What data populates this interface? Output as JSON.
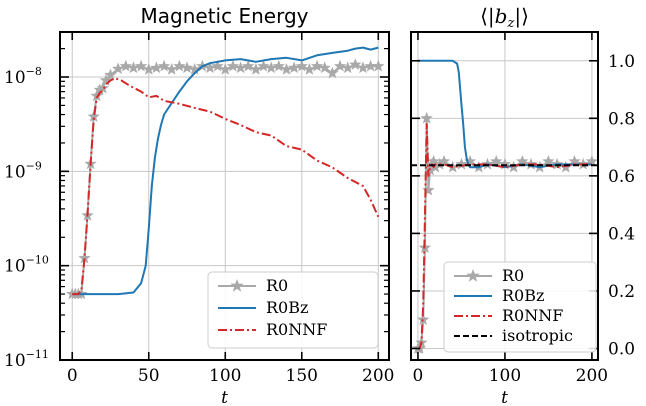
{
  "chart_data": [
    {
      "type": "line",
      "title": "Magnetic Energy",
      "xlabel": "t",
      "ylabel": "",
      "yscale": "log",
      "xlim": [
        -8,
        207
      ],
      "ylim": [
        1e-11,
        3e-08
      ],
      "xticks": [
        0,
        50,
        100,
        150,
        200
      ],
      "xtick_labels": [
        "0",
        "50",
        "100",
        "150",
        "200"
      ],
      "yticks": [
        1e-11,
        1e-10,
        1e-09,
        1e-08
      ],
      "ytick_labels": [
        {
          "base": "10",
          "exp": "−11"
        },
        {
          "base": "10",
          "exp": "−10"
        },
        {
          "base": "10",
          "exp": "−9"
        },
        {
          "base": "10",
          "exp": "−8"
        }
      ],
      "grid": true,
      "legend": "bottom-right",
      "series": [
        {
          "name": "R0",
          "color": "#a9a9a9",
          "marker": "star",
          "x": [
            0,
            2,
            4,
            6,
            8,
            10,
            12,
            14,
            16,
            18,
            20,
            22,
            25,
            30,
            35,
            40,
            45,
            50,
            55,
            60,
            65,
            70,
            75,
            80,
            85,
            90,
            95,
            100,
            105,
            110,
            115,
            120,
            125,
            130,
            135,
            140,
            145,
            150,
            155,
            160,
            165,
            170,
            175,
            180,
            185,
            190,
            195,
            200
          ],
          "y": [
            5e-11,
            5e-11,
            5e-11,
            5e-11,
            1.2e-10,
            3.4e-10,
            1.2e-09,
            3.8e-09,
            6.3e-09,
            7.3e-09,
            7.6e-09,
            9.2e-09,
            1.05e-08,
            1.22e-08,
            1.3e-08,
            1.25e-08,
            1.3e-08,
            1.2e-08,
            1.25e-08,
            1.3e-08,
            1.2e-08,
            1.3e-08,
            1.25e-08,
            1.2e-08,
            1.3e-08,
            1.25e-08,
            1.3e-08,
            1.2e-08,
            1.3e-08,
            1.25e-08,
            1.3e-08,
            1.2e-08,
            1.3e-08,
            1.25e-08,
            1.3e-08,
            1.2e-08,
            1.25e-08,
            1.3e-08,
            1.2e-08,
            1.3e-08,
            1.25e-08,
            1.1e-08,
            1.3e-08,
            1.25e-08,
            1.35e-08,
            1.25e-08,
            1.3e-08,
            1.3e-08
          ]
        },
        {
          "name": "R0Bz",
          "color": "#1f77b4",
          "marker": "none",
          "x": [
            0,
            10,
            20,
            30,
            40,
            45,
            48,
            50,
            52,
            54,
            56,
            58,
            60,
            65,
            70,
            75,
            80,
            85,
            90,
            100,
            110,
            120,
            130,
            140,
            150,
            160,
            170,
            180,
            185,
            190,
            195,
            200
          ],
          "y": [
            5e-11,
            5e-11,
            5e-11,
            5e-11,
            5.2e-11,
            6.5e-11,
            1e-10,
            2.5e-10,
            7e-10,
            1.4e-09,
            2.2e-09,
            3.1e-09,
            4e-09,
            5.3e-09,
            7e-09,
            9e-09,
            1.1e-08,
            1.3e-08,
            1.4e-08,
            1.5e-08,
            1.55e-08,
            1.45e-08,
            1.55e-08,
            1.6e-08,
            1.5e-08,
            1.7e-08,
            1.8e-08,
            1.9e-08,
            2e-08,
            2.05e-08,
            1.95e-08,
            2.05e-08
          ]
        },
        {
          "name": "R0NNF",
          "color": "#d62728",
          "marker": "none",
          "x": [
            0,
            4,
            6,
            8,
            10,
            12,
            14,
            16,
            18,
            20,
            22,
            25,
            28,
            32,
            36,
            40,
            45,
            50,
            55,
            60,
            70,
            80,
            90,
            100,
            110,
            120,
            130,
            140,
            150,
            160,
            170,
            180,
            190,
            195,
            200
          ],
          "y": [
            5e-11,
            5e-11,
            5.5e-11,
            1.2e-10,
            3.5e-10,
            1.2e-09,
            3.5e-09,
            6e-09,
            6.8e-09,
            7.2e-09,
            8.3e-09,
            9.2e-09,
            9.7e-09,
            9.2e-09,
            8.4e-09,
            7.7e-09,
            7e-09,
            6.1e-09,
            6.3e-09,
            5.6e-09,
            5.2e-09,
            4.7e-09,
            4.3e-09,
            3.6e-09,
            3.1e-09,
            2.6e-09,
            2.4e-09,
            1.85e-09,
            1.7e-09,
            1.3e-09,
            1.1e-09,
            8.5e-10,
            7e-10,
            5e-10,
            3.3e-10
          ]
        }
      ]
    },
    {
      "type": "line",
      "title": "⟨|b_z|⟩",
      "title_display": {
        "open": "⟨|",
        "base": "b",
        "sub": "z",
        "close": "|⟩"
      },
      "xlabel": "t",
      "ylabel": "",
      "xlim": [
        -8,
        207
      ],
      "ylim": [
        -0.04,
        1.1
      ],
      "xticks": [
        0,
        100,
        200
      ],
      "xtick_labels": [
        "0",
        "100",
        "200"
      ],
      "yticks": [
        0.0,
        0.2,
        0.4,
        0.6,
        0.8,
        1.0
      ],
      "ytick_labels": [
        "0.0",
        "0.2",
        "0.4",
        "0.6",
        "0.8",
        "1.0"
      ],
      "yaxis_side": "right",
      "grid": true,
      "legend": "bottom-right",
      "series": [
        {
          "name": "R0",
          "color": "#a9a9a9",
          "marker": "star",
          "x": [
            0,
            2,
            4,
            6,
            8,
            10,
            12,
            14,
            16,
            18,
            20,
            25,
            30,
            40,
            50,
            60,
            70,
            80,
            90,
            100,
            110,
            120,
            130,
            140,
            150,
            160,
            170,
            180,
            190,
            200
          ],
          "y": [
            0.0,
            0.0,
            0.02,
            0.1,
            0.35,
            0.8,
            0.55,
            0.62,
            0.64,
            0.65,
            0.63,
            0.64,
            0.65,
            0.63,
            0.64,
            0.65,
            0.63,
            0.64,
            0.65,
            0.64,
            0.63,
            0.65,
            0.64,
            0.63,
            0.65,
            0.64,
            0.63,
            0.65,
            0.64,
            0.65
          ]
        },
        {
          "name": "R0Bz",
          "color": "#1f77b4",
          "marker": "none",
          "x": [
            0,
            20,
            40,
            45,
            47,
            50,
            52,
            54,
            56,
            58,
            60,
            70,
            80,
            100,
            120,
            140,
            160,
            180,
            200
          ],
          "y": [
            1.0,
            1.0,
            1.0,
            0.99,
            0.96,
            0.85,
            0.78,
            0.7,
            0.66,
            0.64,
            0.63,
            0.63,
            0.64,
            0.63,
            0.64,
            0.63,
            0.64,
            0.64,
            0.64
          ]
        },
        {
          "name": "R0NNF",
          "color": "#d62728",
          "marker": "none",
          "x": [
            0,
            2,
            4,
            6,
            8,
            10,
            12,
            14,
            16,
            18,
            20,
            30,
            40,
            60,
            80,
            100,
            120,
            140,
            160,
            180,
            200
          ],
          "y": [
            0.0,
            0.0,
            0.02,
            0.15,
            0.45,
            0.78,
            0.6,
            0.63,
            0.64,
            0.63,
            0.64,
            0.64,
            0.63,
            0.64,
            0.64,
            0.63,
            0.64,
            0.64,
            0.63,
            0.64,
            0.64
          ]
        },
        {
          "name": "isotropic",
          "color": "#000000",
          "marker": "none",
          "dash": "dashed",
          "x": [
            -8,
            207
          ],
          "y": [
            0.6366,
            0.6366
          ]
        }
      ]
    }
  ]
}
